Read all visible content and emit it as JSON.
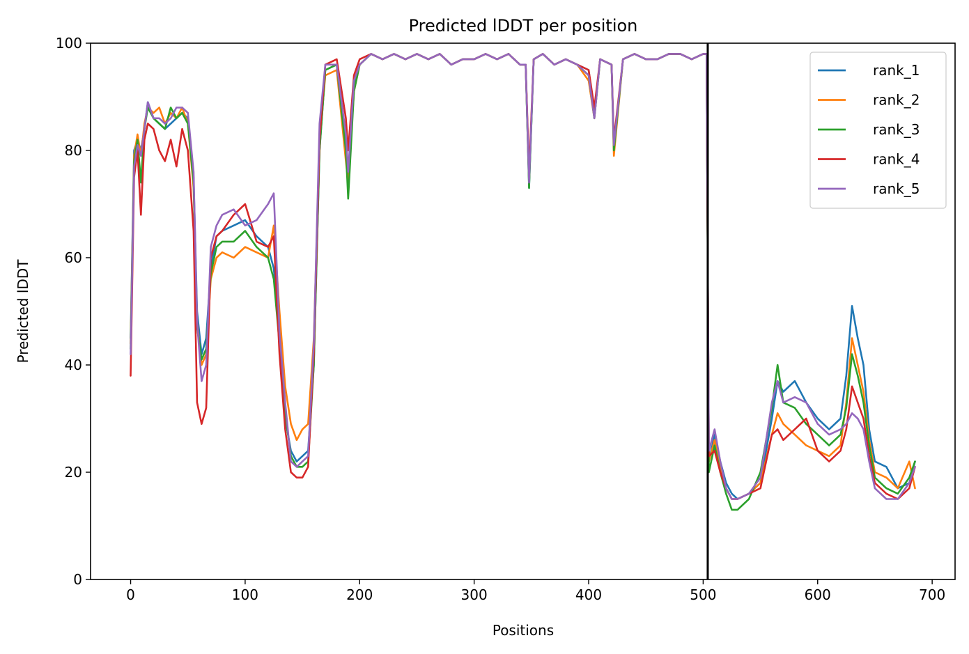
{
  "chart_data": {
    "type": "line",
    "title": "Predicted lDDT per position",
    "xlabel": "Positions",
    "ylabel": "Predicted lDDT",
    "xlim": [
      -35,
      720
    ],
    "ylim": [
      0,
      100
    ],
    "xticks": [
      0,
      100,
      200,
      300,
      400,
      500,
      600,
      700
    ],
    "yticks": [
      0,
      20,
      40,
      60,
      80,
      100
    ],
    "grid": false,
    "legend_position": "top-right",
    "vline_x": 504,
    "series": [
      {
        "name": "rank_1",
        "color": "#1f77b4",
        "x": [
          0,
          3,
          6,
          9,
          12,
          15,
          20,
          25,
          30,
          35,
          40,
          45,
          50,
          55,
          58,
          62,
          66,
          70,
          75,
          80,
          90,
          100,
          110,
          120,
          125,
          130,
          135,
          140,
          145,
          150,
          155,
          160,
          165,
          170,
          180,
          188,
          190,
          195,
          200,
          210,
          220,
          230,
          240,
          250,
          260,
          270,
          280,
          290,
          300,
          310,
          320,
          330,
          340,
          345,
          348,
          352,
          360,
          370,
          380,
          390,
          400,
          405,
          410,
          420,
          422,
          430,
          440,
          450,
          460,
          470,
          480,
          490,
          500,
          503,
          505,
          510,
          515,
          520,
          525,
          530,
          540,
          550,
          560,
          565,
          570,
          580,
          590,
          600,
          610,
          620,
          625,
          630,
          635,
          640,
          645,
          650,
          660,
          670,
          680,
          685
        ],
        "y": [
          45,
          80,
          82,
          80,
          84,
          89,
          86,
          85,
          84,
          85,
          86,
          87,
          86,
          75,
          50,
          42,
          45,
          58,
          64,
          65,
          66,
          67,
          64,
          62,
          58,
          45,
          30,
          24,
          22,
          23,
          24,
          40,
          80,
          95,
          96,
          82,
          72,
          92,
          96,
          98,
          97,
          98,
          97,
          98,
          97,
          98,
          96,
          97,
          97,
          98,
          97,
          98,
          96,
          96,
          73,
          97,
          98,
          96,
          97,
          96,
          95,
          87,
          97,
          96,
          80,
          97,
          98,
          97,
          97,
          98,
          98,
          97,
          98,
          98,
          22,
          27,
          22,
          18,
          16,
          15,
          16,
          18,
          30,
          37,
          35,
          37,
          33,
          30,
          28,
          30,
          38,
          51,
          45,
          40,
          28,
          22,
          21,
          17,
          18,
          22
        ]
      },
      {
        "name": "rank_2",
        "color": "#ff7f0e",
        "x": [
          0,
          3,
          6,
          9,
          12,
          15,
          20,
          25,
          30,
          35,
          40,
          45,
          50,
          55,
          58,
          62,
          66,
          70,
          75,
          80,
          90,
          100,
          110,
          120,
          125,
          130,
          135,
          140,
          145,
          150,
          155,
          160,
          165,
          170,
          180,
          188,
          190,
          195,
          200,
          210,
          220,
          230,
          240,
          250,
          260,
          270,
          280,
          290,
          300,
          310,
          320,
          330,
          340,
          345,
          348,
          352,
          360,
          370,
          380,
          390,
          400,
          405,
          410,
          420,
          422,
          430,
          440,
          450,
          460,
          470,
          480,
          490,
          500,
          503,
          505,
          510,
          515,
          520,
          525,
          530,
          540,
          550,
          560,
          565,
          570,
          580,
          590,
          600,
          610,
          620,
          625,
          630,
          635,
          640,
          645,
          650,
          660,
          670,
          680,
          685
        ],
        "y": [
          44,
          79,
          83,
          79,
          85,
          88,
          87,
          88,
          85,
          87,
          86,
          88,
          85,
          73,
          48,
          40,
          42,
          56,
          60,
          61,
          60,
          62,
          61,
          60,
          66,
          50,
          36,
          29,
          26,
          28,
          29,
          45,
          82,
          94,
          95,
          78,
          74,
          91,
          96,
          98,
          97,
          98,
          97,
          98,
          97,
          98,
          96,
          97,
          97,
          98,
          97,
          98,
          96,
          96,
          74,
          97,
          98,
          96,
          97,
          96,
          93,
          86,
          97,
          96,
          79,
          97,
          98,
          97,
          97,
          98,
          98,
          97,
          98,
          98,
          22,
          26,
          21,
          17,
          15,
          15,
          16,
          18,
          27,
          31,
          29,
          27,
          25,
          24,
          23,
          25,
          33,
          45,
          40,
          35,
          26,
          20,
          19,
          17,
          22,
          17
        ]
      },
      {
        "name": "rank_3",
        "color": "#2ca02c",
        "x": [
          0,
          3,
          6,
          9,
          12,
          15,
          20,
          25,
          30,
          35,
          40,
          45,
          50,
          55,
          58,
          62,
          66,
          70,
          75,
          80,
          90,
          100,
          110,
          120,
          125,
          130,
          135,
          140,
          145,
          150,
          155,
          160,
          165,
          170,
          180,
          188,
          190,
          195,
          200,
          210,
          220,
          230,
          240,
          250,
          260,
          270,
          280,
          290,
          300,
          310,
          320,
          330,
          340,
          345,
          348,
          352,
          360,
          370,
          380,
          390,
          400,
          405,
          410,
          420,
          422,
          430,
          440,
          450,
          460,
          470,
          480,
          490,
          500,
          503,
          505,
          510,
          515,
          520,
          525,
          530,
          540,
          550,
          560,
          565,
          570,
          580,
          590,
          600,
          610,
          620,
          625,
          630,
          635,
          640,
          645,
          650,
          660,
          670,
          680,
          685
        ],
        "y": [
          43,
          78,
          82,
          74,
          84,
          88,
          86,
          85,
          84,
          88,
          86,
          87,
          85,
          74,
          47,
          41,
          43,
          57,
          62,
          63,
          63,
          65,
          62,
          60,
          56,
          44,
          31,
          23,
          21,
          21,
          22,
          40,
          80,
          95,
          96,
          80,
          71,
          91,
          96,
          98,
          97,
          98,
          97,
          98,
          97,
          98,
          96,
          97,
          97,
          98,
          97,
          98,
          96,
          96,
          73,
          97,
          98,
          96,
          97,
          96,
          94,
          86,
          97,
          96,
          80,
          97,
          98,
          97,
          97,
          98,
          98,
          97,
          98,
          98,
          20,
          25,
          20,
          16,
          13,
          13,
          15,
          20,
          32,
          40,
          33,
          32,
          29,
          27,
          25,
          27,
          32,
          42,
          38,
          33,
          25,
          19,
          17,
          16,
          19,
          22
        ]
      },
      {
        "name": "rank_4",
        "color": "#d62728",
        "x": [
          0,
          3,
          6,
          9,
          12,
          15,
          20,
          25,
          30,
          35,
          40,
          45,
          50,
          55,
          58,
          62,
          66,
          70,
          75,
          80,
          90,
          100,
          110,
          120,
          125,
          130,
          135,
          140,
          145,
          150,
          155,
          160,
          165,
          170,
          180,
          188,
          190,
          195,
          200,
          210,
          220,
          230,
          240,
          250,
          260,
          270,
          280,
          290,
          300,
          310,
          320,
          330,
          340,
          345,
          348,
          352,
          360,
          370,
          380,
          390,
          400,
          405,
          410,
          420,
          422,
          430,
          440,
          450,
          460,
          470,
          480,
          490,
          500,
          503,
          505,
          510,
          515,
          520,
          525,
          530,
          540,
          550,
          560,
          565,
          570,
          580,
          590,
          600,
          610,
          620,
          625,
          630,
          635,
          640,
          645,
          650,
          660,
          670,
          680,
          685
        ],
        "y": [
          38,
          75,
          80,
          68,
          82,
          85,
          84,
          80,
          78,
          82,
          77,
          84,
          80,
          65,
          33,
          29,
          32,
          60,
          64,
          65,
          68,
          70,
          63,
          62,
          64,
          42,
          28,
          20,
          19,
          19,
          21,
          42,
          82,
          96,
          97,
          86,
          80,
          94,
          97,
          98,
          97,
          98,
          97,
          98,
          97,
          98,
          96,
          97,
          97,
          98,
          97,
          98,
          96,
          96,
          76,
          97,
          98,
          96,
          97,
          96,
          95,
          88,
          97,
          96,
          82,
          97,
          98,
          97,
          97,
          98,
          98,
          97,
          98,
          98,
          23,
          24,
          20,
          17,
          15,
          15,
          16,
          17,
          27,
          28,
          26,
          28,
          30,
          24,
          22,
          24,
          28,
          36,
          33,
          30,
          23,
          18,
          16,
          15,
          17,
          21
        ]
      },
      {
        "name": "rank_5",
        "color": "#9467bd",
        "x": [
          0,
          3,
          6,
          9,
          12,
          15,
          20,
          25,
          30,
          35,
          40,
          45,
          50,
          55,
          58,
          62,
          66,
          70,
          75,
          80,
          90,
          100,
          110,
          120,
          125,
          130,
          135,
          140,
          145,
          150,
          155,
          160,
          165,
          170,
          180,
          188,
          190,
          195,
          200,
          210,
          220,
          230,
          240,
          250,
          260,
          270,
          280,
          290,
          300,
          310,
          320,
          330,
          340,
          345,
          348,
          352,
          360,
          370,
          380,
          390,
          400,
          405,
          410,
          420,
          422,
          430,
          440,
          450,
          460,
          470,
          480,
          490,
          500,
          503,
          505,
          510,
          515,
          520,
          525,
          530,
          540,
          550,
          560,
          565,
          570,
          580,
          590,
          600,
          610,
          620,
          625,
          630,
          635,
          640,
          645,
          650,
          660,
          670,
          680,
          685
        ],
        "y": [
          42,
          77,
          81,
          79,
          84,
          89,
          86,
          86,
          85,
          86,
          88,
          88,
          87,
          76,
          48,
          37,
          40,
          62,
          66,
          68,
          69,
          66,
          67,
          70,
          72,
          46,
          33,
          22,
          21,
          22,
          23,
          44,
          85,
          96,
          96,
          83,
          76,
          93,
          96,
          98,
          97,
          98,
          97,
          98,
          97,
          98,
          96,
          97,
          97,
          98,
          97,
          98,
          96,
          96,
          74,
          97,
          98,
          96,
          97,
          96,
          94,
          86,
          97,
          96,
          81,
          97,
          98,
          97,
          97,
          98,
          98,
          97,
          98,
          98,
          24,
          28,
          22,
          17,
          15,
          15,
          16,
          19,
          33,
          37,
          33,
          34,
          33,
          29,
          27,
          28,
          29,
          31,
          30,
          28,
          22,
          17,
          15,
          15,
          18,
          21
        ]
      }
    ]
  }
}
